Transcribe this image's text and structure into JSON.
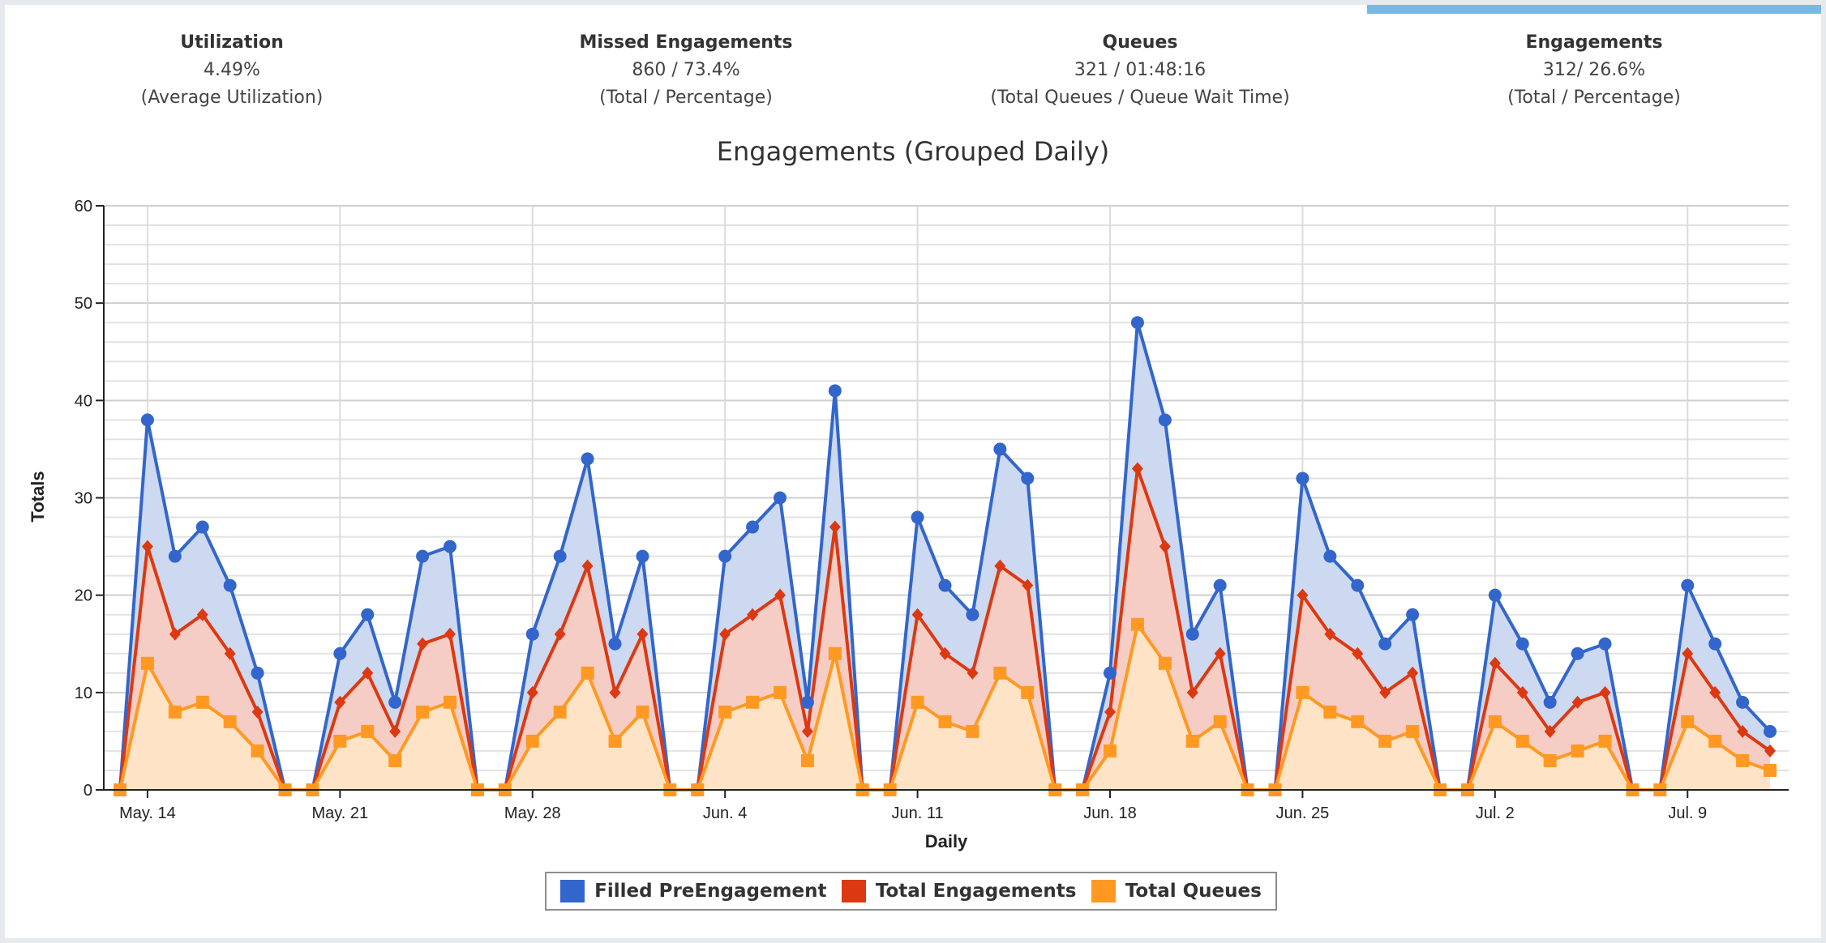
{
  "stats": [
    {
      "title": "Utilization",
      "value": "4.49%",
      "caption": "(Average Utilization)"
    },
    {
      "title": "Missed Engagements",
      "value": "860 / 73.4%",
      "caption": "(Total / Percentage)"
    },
    {
      "title": "Queues",
      "value": "321 / 01:48:16",
      "caption": "(Total Queues / Queue Wait Time)"
    },
    {
      "title": "Engagements",
      "value": "312/ 26.6%",
      "caption": "(Total / Percentage)"
    }
  ],
  "colors": {
    "accent": "#78b9e4",
    "blue": "#3366cc",
    "red": "#dc3912",
    "orange": "#ff9922"
  },
  "chart_data": {
    "type": "area",
    "title": "Engagements (Grouped Daily)",
    "xlabel": "Daily",
    "ylabel": "Totals",
    "ylim": [
      0,
      60
    ],
    "yticks": [
      0,
      10,
      20,
      30,
      40,
      50,
      60
    ],
    "grid": true,
    "legend_position": "bottom",
    "x_start": "May. 13",
    "xtick_labels": [
      {
        "label": "May. 14",
        "index": 1
      },
      {
        "label": "May. 21",
        "index": 8
      },
      {
        "label": "May. 28",
        "index": 15
      },
      {
        "label": "Jun. 4",
        "index": 22
      },
      {
        "label": "Jun. 11",
        "index": 29
      },
      {
        "label": "Jun. 18",
        "index": 36
      },
      {
        "label": "Jun. 25",
        "index": 43
      },
      {
        "label": "Jul. 2",
        "index": 50
      },
      {
        "label": "Jul. 9",
        "index": 57
      }
    ],
    "series": [
      {
        "name": "Filled PreEngagement",
        "color": "#3366cc",
        "fill": "#ccd9f0",
        "marker": "circle",
        "values": [
          0,
          38,
          24,
          27,
          21,
          12,
          0,
          0,
          14,
          18,
          9,
          24,
          25,
          0,
          0,
          16,
          24,
          34,
          15,
          24,
          0,
          0,
          24,
          27,
          30,
          9,
          41,
          0,
          0,
          28,
          21,
          18,
          35,
          32,
          0,
          0,
          12,
          48,
          38,
          16,
          21,
          0,
          0,
          32,
          24,
          21,
          15,
          18,
          0,
          0,
          20,
          15,
          9,
          14,
          15,
          0,
          0,
          21,
          15,
          9,
          6
        ]
      },
      {
        "name": "Total Engagements",
        "color": "#dc3912",
        "fill": "#f5cdc5",
        "marker": "diamond",
        "values": [
          0,
          25,
          16,
          18,
          14,
          8,
          0,
          0,
          9,
          12,
          6,
          15,
          16,
          0,
          0,
          10,
          16,
          23,
          10,
          16,
          0,
          0,
          16,
          18,
          20,
          6,
          27,
          0,
          0,
          18,
          14,
          12,
          23,
          21,
          0,
          0,
          8,
          33,
          25,
          10,
          14,
          0,
          0,
          20,
          16,
          14,
          10,
          12,
          0,
          0,
          13,
          10,
          6,
          9,
          10,
          0,
          0,
          14,
          10,
          6,
          4
        ]
      },
      {
        "name": "Total Queues",
        "color": "#ff9922",
        "fill": "#fee3c6",
        "marker": "square",
        "values": [
          0,
          13,
          8,
          9,
          7,
          4,
          0,
          0,
          5,
          6,
          3,
          8,
          9,
          0,
          0,
          5,
          8,
          12,
          5,
          8,
          0,
          0,
          8,
          9,
          10,
          3,
          14,
          0,
          0,
          9,
          7,
          6,
          12,
          10,
          0,
          0,
          4,
          17,
          13,
          5,
          7,
          0,
          0,
          10,
          8,
          7,
          5,
          6,
          0,
          0,
          7,
          5,
          3,
          4,
          5,
          0,
          0,
          7,
          5,
          3,
          2
        ]
      }
    ]
  }
}
